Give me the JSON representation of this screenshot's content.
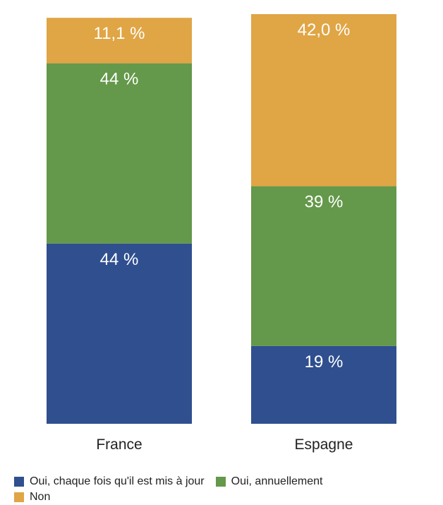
{
  "chart_data": {
    "type": "bar",
    "stacked": true,
    "categories": [
      "France",
      "Espagne"
    ],
    "series": [
      {
        "name": "Oui, chaque fois qu'il est mis à jour",
        "color": "#2f4f8f",
        "values": [
          44,
          19
        ],
        "labels": [
          "44 %",
          "19 %"
        ]
      },
      {
        "name": "Oui, annuellement",
        "color": "#64984a",
        "values": [
          44,
          39
        ],
        "labels": [
          "44 %",
          "39 %"
        ]
      },
      {
        "name": "Non",
        "color": "#e0a545",
        "values": [
          11.1,
          42.0
        ],
        "labels": [
          "11,1 %",
          "42,0 %"
        ]
      }
    ],
    "ylim": [
      0,
      100
    ],
    "grid": false,
    "legend_position": "bottom"
  }
}
